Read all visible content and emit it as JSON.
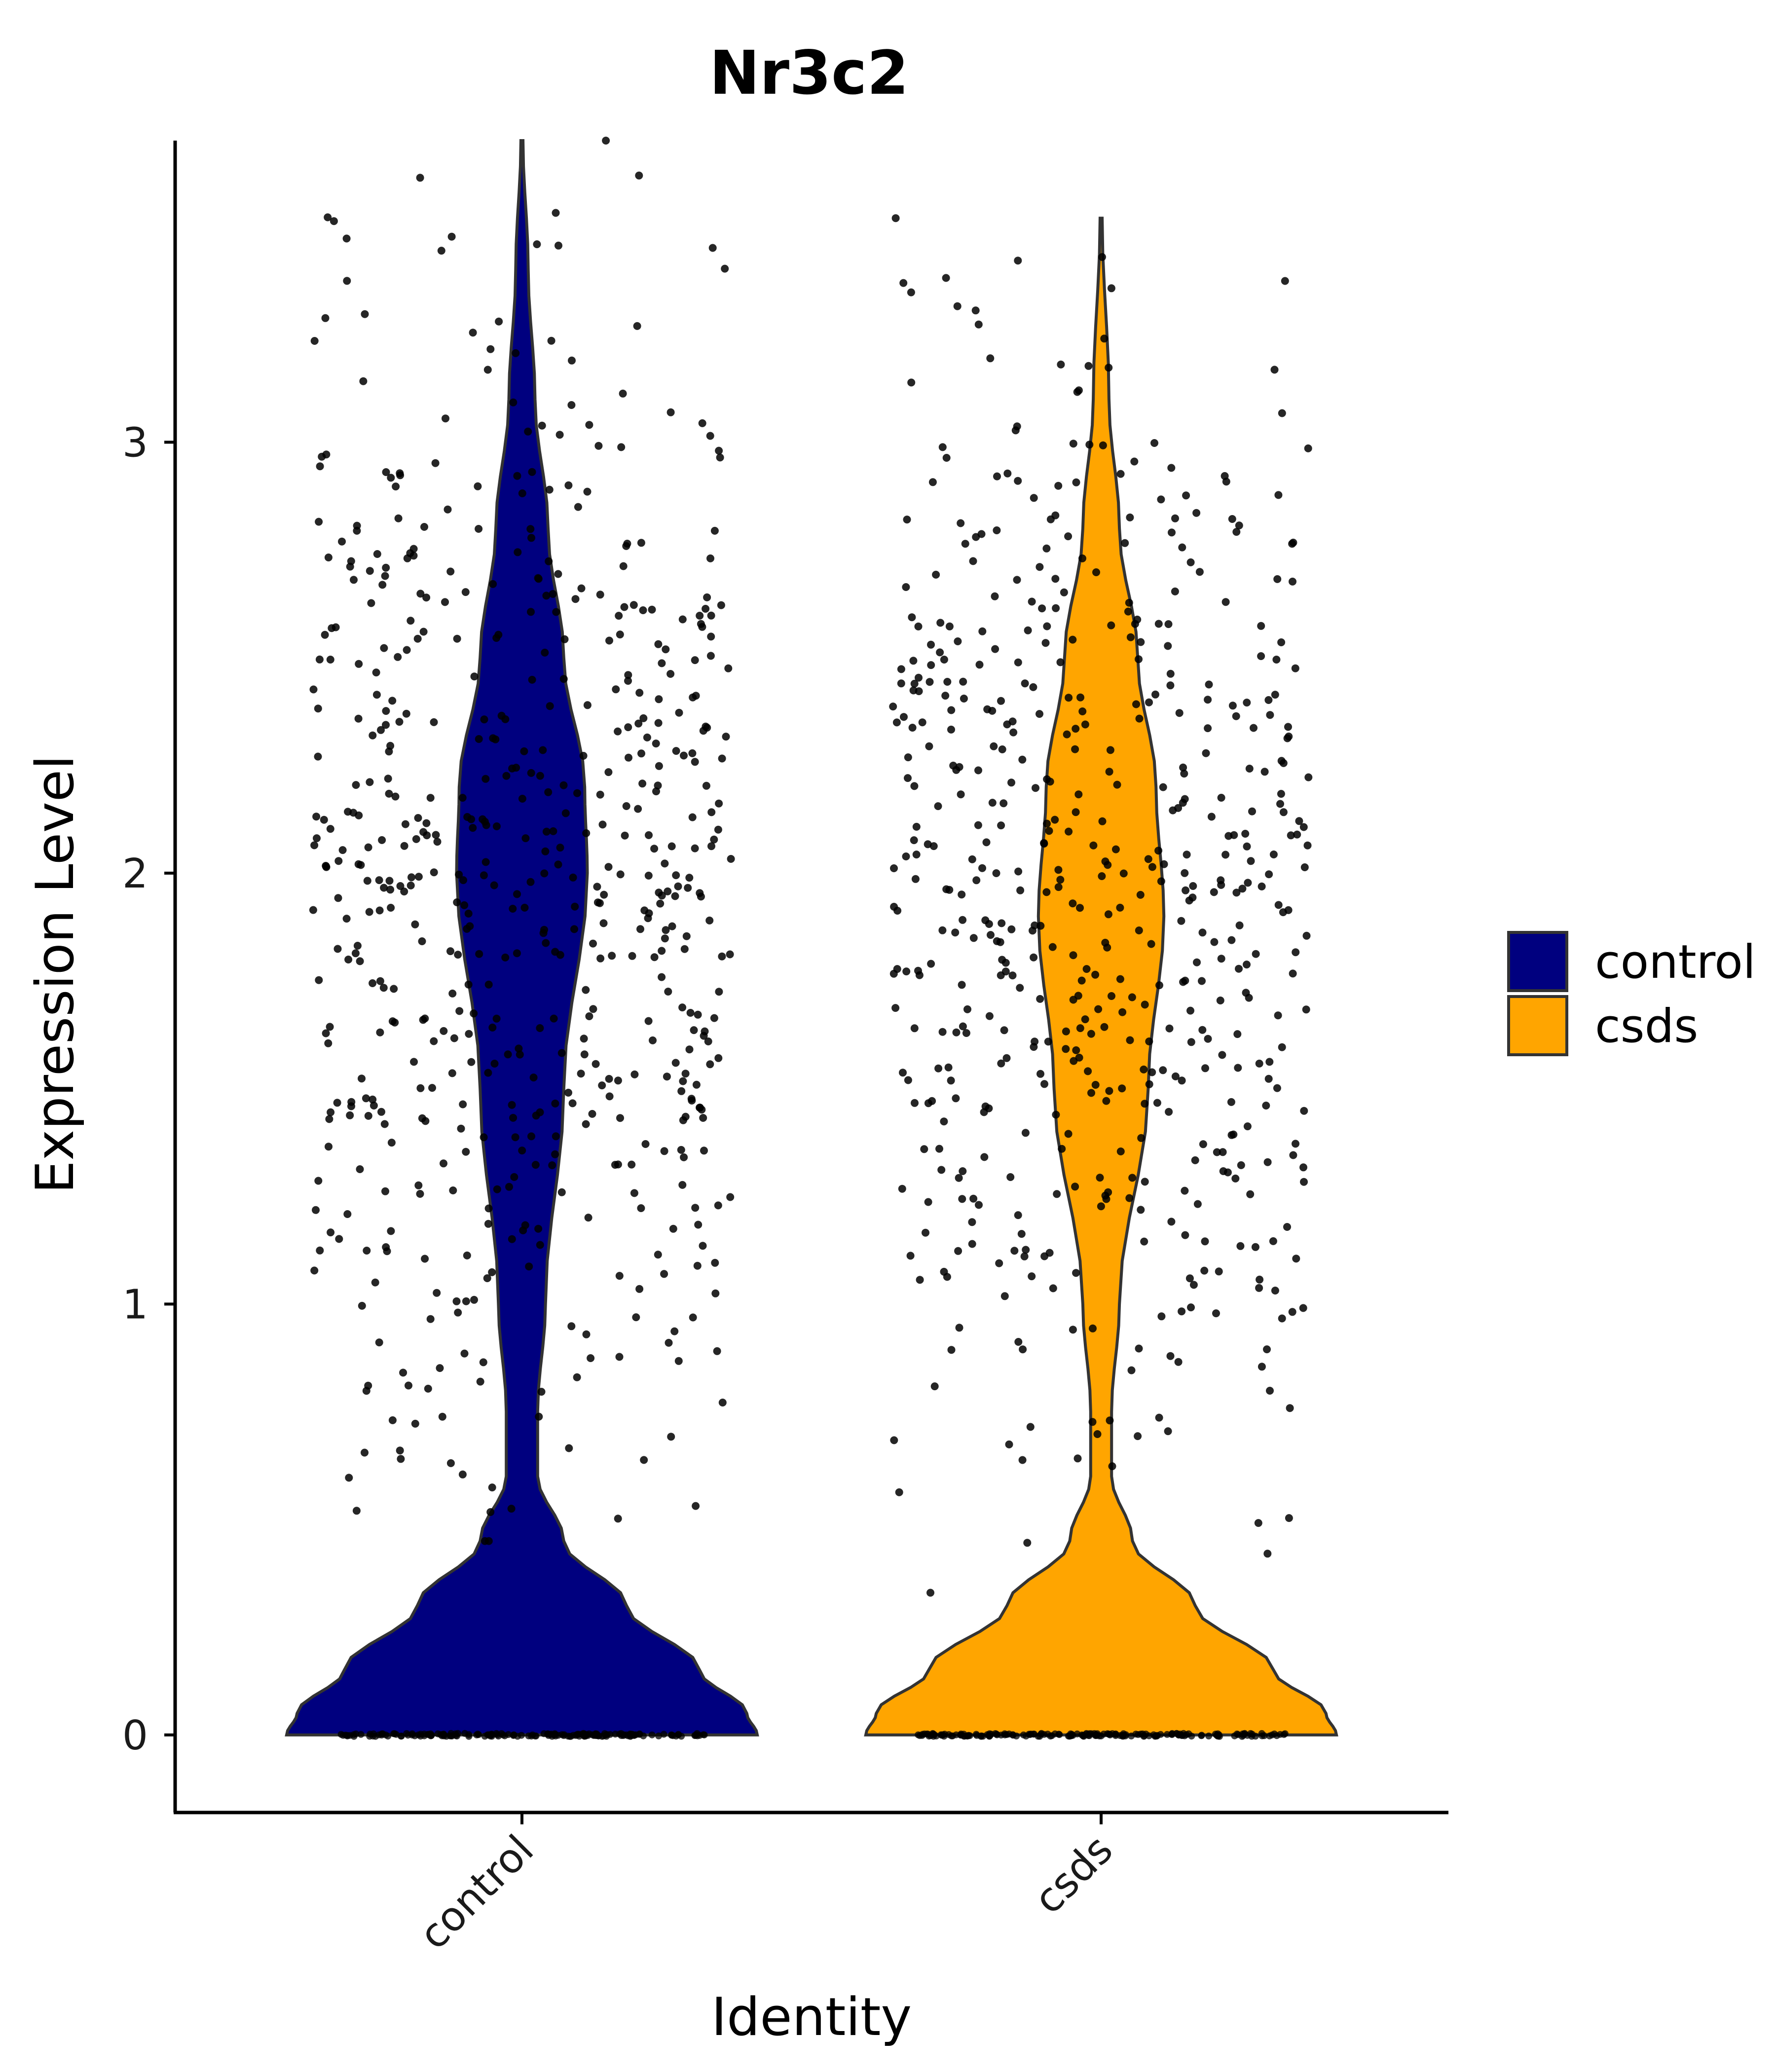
{
  "chart_data": {
    "type": "violin",
    "title": "Nr3c2",
    "xlabel": "Identity",
    "ylabel": "Expression Level",
    "categories": [
      "control",
      "csds"
    ],
    "ylim": [
      -0.18,
      3.7
    ],
    "yticks": [
      0,
      1,
      2,
      3
    ],
    "colors": {
      "control": "#00007F",
      "csds": "#FFA500"
    },
    "point_color": "#000000",
    "legend": {
      "position": "right",
      "entries": [
        "control",
        "csds"
      ]
    },
    "series": [
      {
        "name": "control",
        "max_value": 3.7,
        "zero_fraction": "majority",
        "density_profile": [
          {
            "y": 0.0,
            "half_width": 0.45
          },
          {
            "y": 0.05,
            "half_width": 0.43
          },
          {
            "y": 0.15,
            "half_width": 0.34
          },
          {
            "y": 0.3,
            "half_width": 0.2
          },
          {
            "y": 0.45,
            "half_width": 0.08
          },
          {
            "y": 0.6,
            "half_width": 0.03
          },
          {
            "y": 0.75,
            "half_width": 0.03
          },
          {
            "y": 1.0,
            "half_width": 0.045
          },
          {
            "y": 1.5,
            "half_width": 0.08
          },
          {
            "y": 2.0,
            "half_width": 0.125
          },
          {
            "y": 2.2,
            "half_width": 0.12
          },
          {
            "y": 2.5,
            "half_width": 0.08
          },
          {
            "y": 2.8,
            "half_width": 0.05
          },
          {
            "y": 3.1,
            "half_width": 0.025
          },
          {
            "y": 3.4,
            "half_width": 0.012
          },
          {
            "y": 3.7,
            "half_width": 0.002
          }
        ]
      },
      {
        "name": "csds",
        "max_value": 3.52,
        "zero_fraction": "majority",
        "density_profile": [
          {
            "y": 0.0,
            "half_width": 0.45
          },
          {
            "y": 0.05,
            "half_width": 0.43
          },
          {
            "y": 0.15,
            "half_width": 0.33
          },
          {
            "y": 0.3,
            "half_width": 0.18
          },
          {
            "y": 0.45,
            "half_width": 0.06
          },
          {
            "y": 0.6,
            "half_width": 0.02
          },
          {
            "y": 0.75,
            "half_width": 0.02
          },
          {
            "y": 1.0,
            "half_width": 0.035
          },
          {
            "y": 1.5,
            "half_width": 0.09
          },
          {
            "y": 1.9,
            "half_width": 0.12
          },
          {
            "y": 2.2,
            "half_width": 0.105
          },
          {
            "y": 2.5,
            "half_width": 0.07
          },
          {
            "y": 2.8,
            "half_width": 0.035
          },
          {
            "y": 3.1,
            "half_width": 0.015
          },
          {
            "y": 3.52,
            "half_width": 0.002
          }
        ]
      }
    ],
    "points": [
      {
        "name": "control",
        "y_min": 0.45,
        "y_max": 3.7,
        "approx_count": 600,
        "jitter": 0.4
      },
      {
        "name": "csds",
        "y_min": 0.33,
        "y_max": 3.52,
        "approx_count": 560,
        "jitter": 0.4
      }
    ]
  }
}
